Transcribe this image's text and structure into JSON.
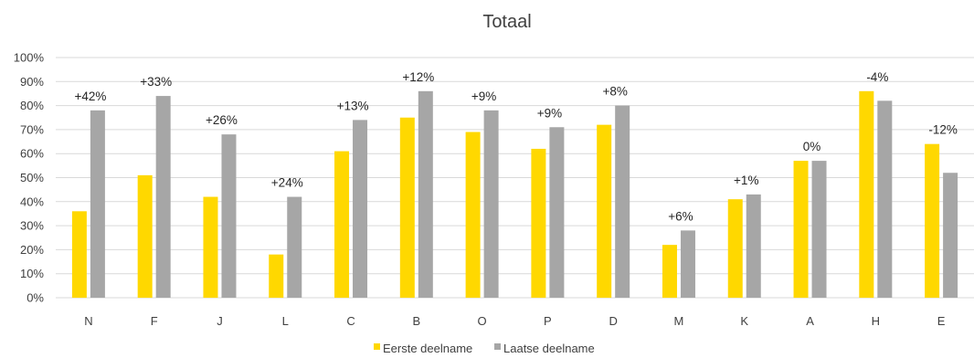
{
  "chart_data": {
    "type": "bar",
    "title": "Totaal",
    "categories": [
      "N",
      "F",
      "J",
      "L",
      "C",
      "B",
      "O",
      "P",
      "D",
      "M",
      "K",
      "A",
      "H",
      "E"
    ],
    "series": [
      {
        "name": "Eerste deelname",
        "color": "#FFD800",
        "values": [
          36,
          51,
          42,
          18,
          61,
          75,
          69,
          62,
          72,
          22,
          41,
          57,
          86,
          64
        ]
      },
      {
        "name": "Laatse deelname",
        "color": "#A6A6A6",
        "values": [
          78,
          84,
          68,
          42,
          74,
          86,
          78,
          71,
          80,
          28,
          43,
          57,
          82,
          52
        ]
      }
    ],
    "data_labels": [
      "+42%",
      "+33%",
      "+26%",
      "+24%",
      "+13%",
      "+12%",
      "+9%",
      "+9%",
      "+8%",
      "+6%",
      "+1%",
      "0%",
      "-4%",
      "-12%"
    ],
    "yticks": [
      "0%",
      "10%",
      "20%",
      "30%",
      "40%",
      "50%",
      "60%",
      "70%",
      "80%",
      "90%",
      "100%"
    ],
    "ylim": [
      0,
      100
    ],
    "grid": true,
    "legend_position": "bottom"
  }
}
